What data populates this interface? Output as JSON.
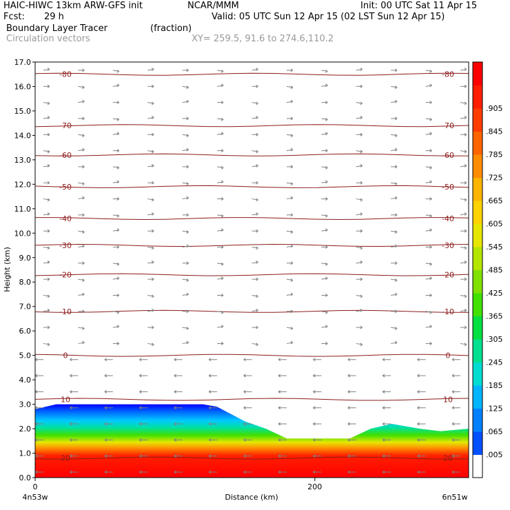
{
  "header": {
    "line1_left": "HAIC-HIWC 13km ARW-GFS init",
    "line1_mid": "NCAR/MMM",
    "line1_right": "Init: 00 UTC Sat 11 Apr 15",
    "line2_left": "Fcst:",
    "line2_hours": "29 h",
    "line2_right": "Valid: 05 UTC Sun 12 Apr 15 (02 LST Sun 12 Apr 15)",
    "field1_name": "Boundary Layer Tracer",
    "field1_units": "(fraction)",
    "field2_name": "Circulation vectors",
    "xy_label": "XY= 259.5, 91.6 to 274.6,110.2"
  },
  "chart_data": {
    "type": "heatmap",
    "ylabel": "Height (km)",
    "xlabel": "Distance (km)",
    "ylim": [
      0,
      17
    ],
    "xlim": [
      0,
      310
    ],
    "y_ticks": [
      "0.0",
      "1.0",
      "2.0",
      "3.0",
      "4.0",
      "5.0",
      "6.0",
      "7.0",
      "8.0",
      "9.0",
      "10.0",
      "11.0",
      "12.0",
      "13.0",
      "14.0",
      "15.0",
      "16.0",
      "17.0"
    ],
    "x_ticks": [
      {
        "value": 0,
        "label": "0"
      },
      {
        "value": 200,
        "label": "200"
      }
    ],
    "x_endpoints": {
      "left": "4n53w",
      "right": "6n51w"
    },
    "colorbar": {
      "labels": [
        ".005",
        ".065",
        ".125",
        ".185",
        ".245",
        ".305",
        ".365",
        ".425",
        ".485",
        ".545",
        ".605",
        ".665",
        ".725",
        ".785",
        ".845",
        ".905"
      ],
      "colors": [
        "#ffffff",
        "#0050ff",
        "#0080ff",
        "#00b4ff",
        "#00dcd0",
        "#00e090",
        "#00e040",
        "#40e000",
        "#80e000",
        "#b4e600",
        "#e6e600",
        "#ffd200",
        "#ffb400",
        "#ff8c00",
        "#ff6400",
        "#ff3c00",
        "#ff1e00",
        "#ff0000"
      ]
    },
    "tracer_top_km": [
      [
        0,
        2.8
      ],
      [
        15,
        3.0
      ],
      [
        60,
        3.0
      ],
      [
        120,
        3.0
      ],
      [
        130,
        2.9
      ],
      [
        140,
        2.6
      ],
      [
        150,
        2.3
      ],
      [
        165,
        2.0
      ],
      [
        180,
        1.6
      ],
      [
        200,
        1.6
      ],
      [
        225,
        1.6
      ],
      [
        240,
        2.0
      ],
      [
        255,
        2.2
      ],
      [
        275,
        2.0
      ],
      [
        290,
        1.9
      ],
      [
        310,
        2.0
      ]
    ],
    "temperature_contours_c": [
      {
        "label": "-80",
        "height_km": 16.5
      },
      {
        "label": "-70",
        "height_km": 14.4
      },
      {
        "label": "-60",
        "height_km": 13.2
      },
      {
        "label": "-50",
        "height_km": 11.9
      },
      {
        "label": "-40",
        "height_km": 10.6
      },
      {
        "label": "-30",
        "height_km": 9.5
      },
      {
        "label": "-20",
        "height_km": 8.3
      },
      {
        "label": "-10",
        "height_km": 6.8
      },
      {
        "label": "0",
        "height_km": 5.0
      },
      {
        "label": "10",
        "height_km": 3.2
      },
      {
        "label": "20",
        "height_km": 0.8
      }
    ]
  }
}
